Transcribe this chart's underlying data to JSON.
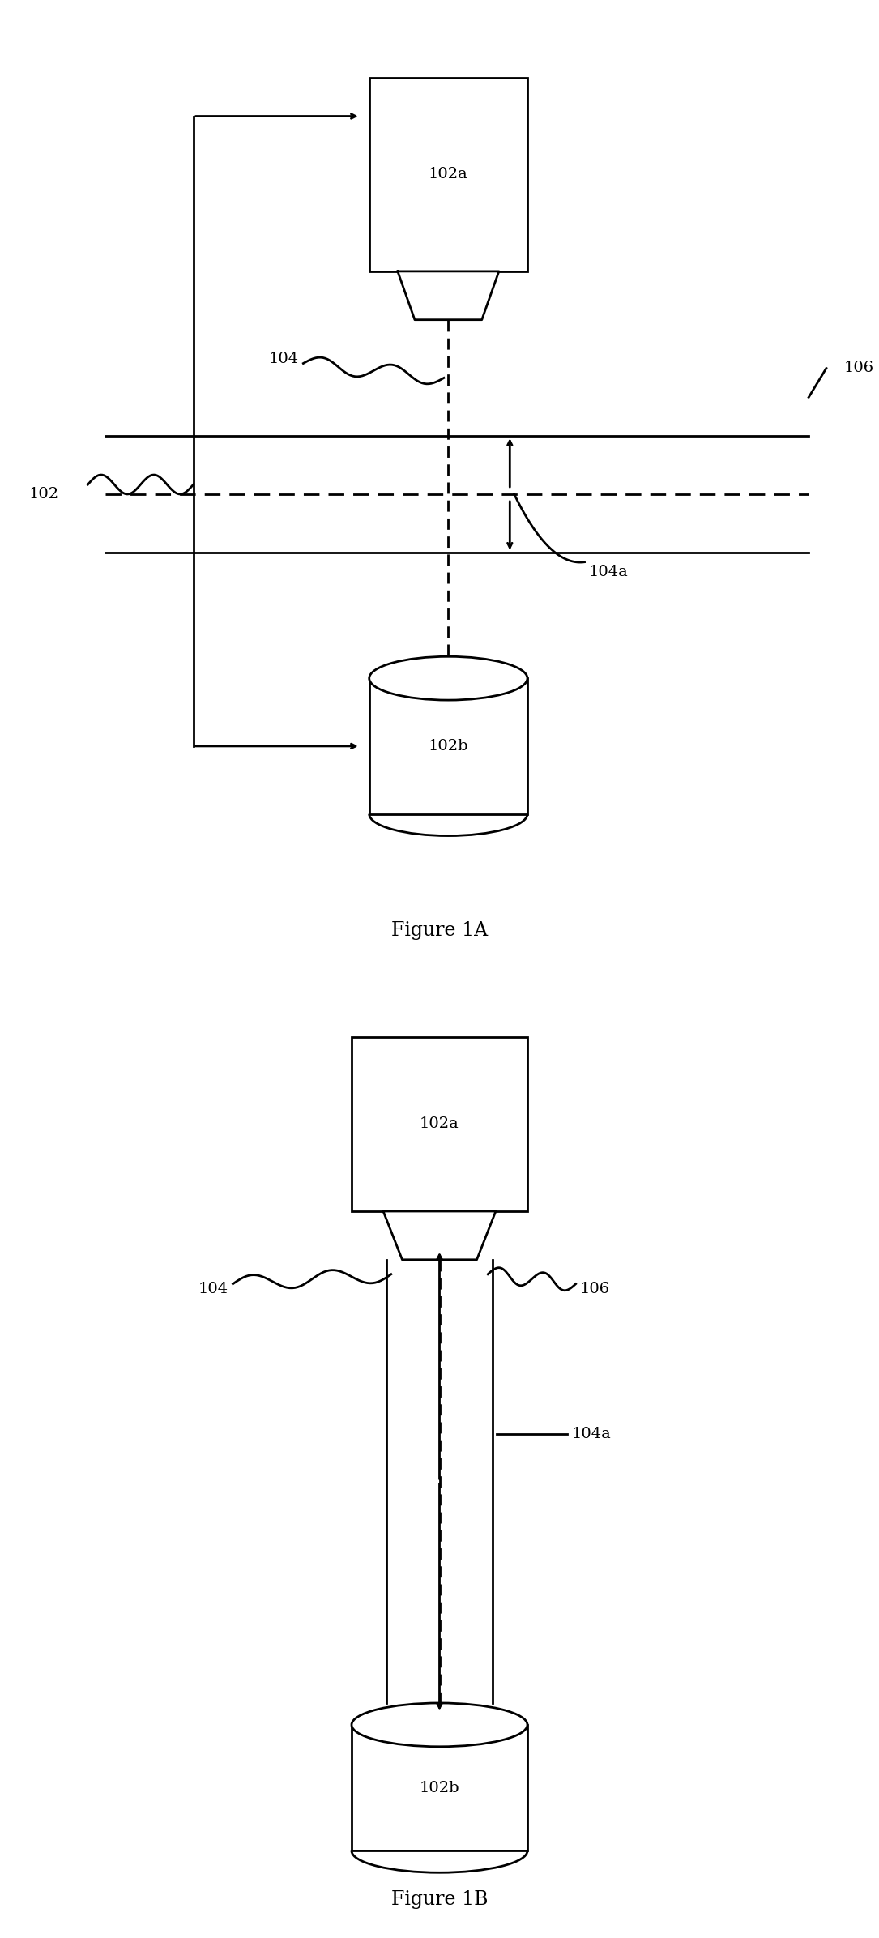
{
  "fig_width": 10.85,
  "fig_height": 23.92,
  "bg_color": "#ffffff",
  "line_color": "#000000",
  "fig1A_title": "Figure 1A",
  "fig1B_title": "Figure 1B",
  "lw": 2.0,
  "labels": {
    "102": "102",
    "102a_1A": "102a",
    "102b_1A": "102b",
    "104_1A": "104",
    "104a_1A": "104a",
    "106_1A": "106",
    "102a_1B": "102a",
    "102b_1B": "102b",
    "104_1B": "104",
    "104a_1B": "104a",
    "106_1B": "106"
  }
}
